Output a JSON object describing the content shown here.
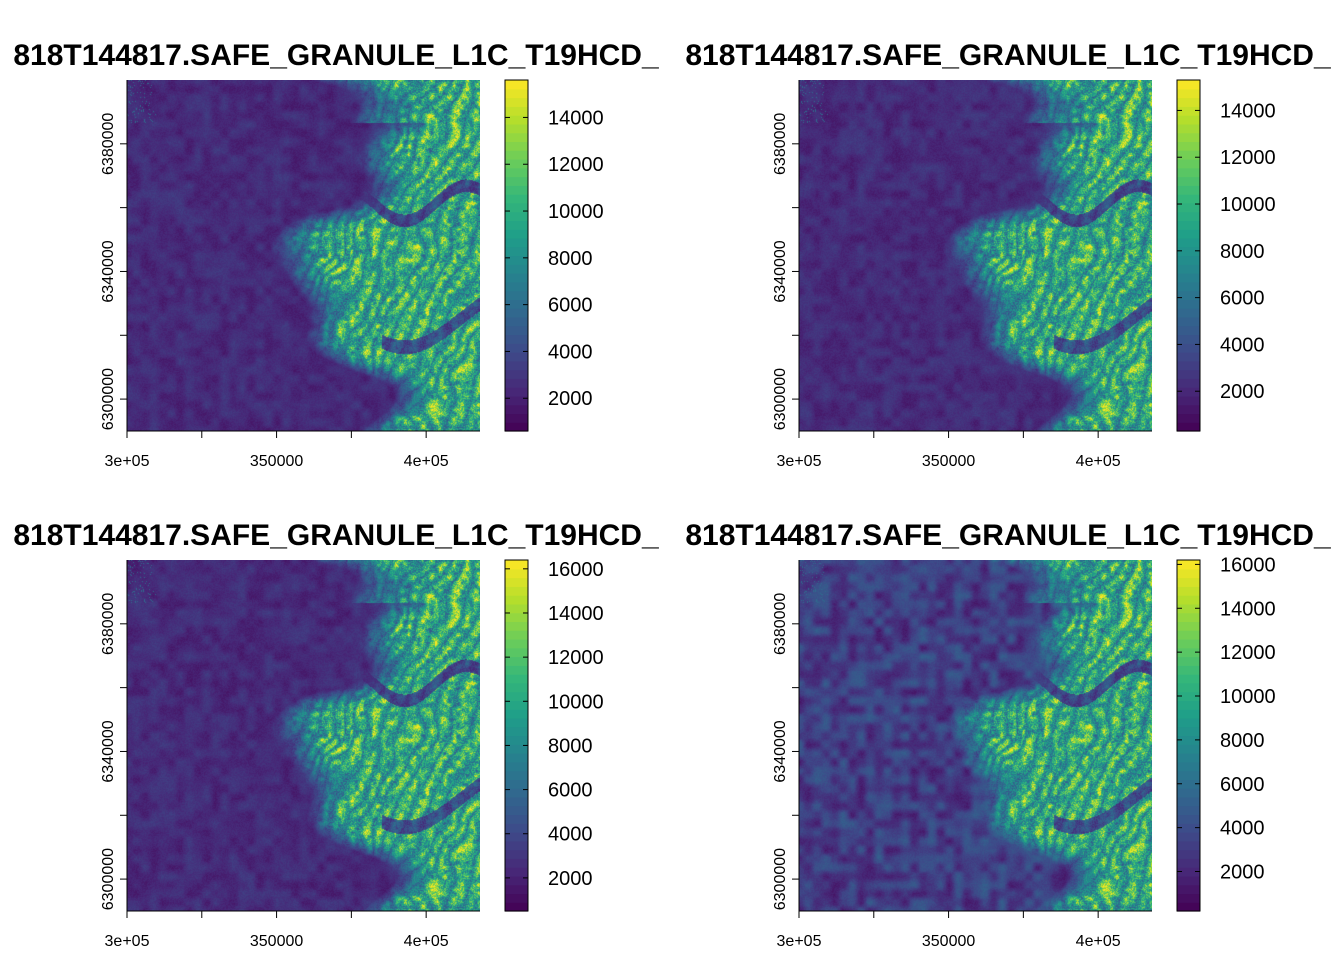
{
  "chart_data": [
    {
      "type": "heatmap",
      "title": "818T144817.SAFE_GRANULE_L1C_T19HCD_",
      "x_ticks": [
        {
          "value": 300000,
          "label": "3e+05"
        },
        {
          "value": 350000,
          "label": "350000"
        },
        {
          "value": 400000,
          "label": "4e+05"
        }
      ],
      "y_ticks": [
        {
          "value": 6300000,
          "label": "6300000"
        },
        {
          "value": 6340000,
          "label": "6340000"
        },
        {
          "value": 6380000,
          "label": "6380000"
        }
      ],
      "colorbar": {
        "min": 600,
        "max": 15600,
        "ticks": [
          2000,
          4000,
          6000,
          8000,
          10000,
          12000,
          14000
        ]
      },
      "texture": 0.1
    },
    {
      "type": "heatmap",
      "title": "818T144817.SAFE_GRANULE_L1C_T19HCD_",
      "x_ticks": [
        {
          "value": 300000,
          "label": "3e+05"
        },
        {
          "value": 350000,
          "label": "350000"
        },
        {
          "value": 400000,
          "label": "4e+05"
        }
      ],
      "y_ticks": [
        {
          "value": 6300000,
          "label": "6300000"
        },
        {
          "value": 6340000,
          "label": "6340000"
        },
        {
          "value": 6380000,
          "label": "6380000"
        }
      ],
      "colorbar": {
        "min": 300,
        "max": 15300,
        "ticks": [
          2000,
          4000,
          6000,
          8000,
          10000,
          12000,
          14000
        ]
      },
      "texture": 0.1
    },
    {
      "type": "heatmap",
      "title": "818T144817.SAFE_GRANULE_L1C_T19HCD_",
      "x_ticks": [
        {
          "value": 300000,
          "label": "3e+05"
        },
        {
          "value": 350000,
          "label": "350000"
        },
        {
          "value": 400000,
          "label": "4e+05"
        }
      ],
      "y_ticks": [
        {
          "value": 6300000,
          "label": "6300000"
        },
        {
          "value": 6340000,
          "label": "6340000"
        },
        {
          "value": 6380000,
          "label": "6380000"
        }
      ],
      "colorbar": {
        "min": 500,
        "max": 16400,
        "ticks": [
          2000,
          4000,
          6000,
          8000,
          10000,
          12000,
          14000,
          16000
        ]
      },
      "texture": 0.1
    },
    {
      "type": "heatmap",
      "title": "818T144817.SAFE_GRANULE_L1C_T19HCD_",
      "x_ticks": [
        {
          "value": 300000,
          "label": "3e+05"
        },
        {
          "value": 350000,
          "label": "350000"
        },
        {
          "value": 400000,
          "label": "4e+05"
        }
      ],
      "y_ticks": [
        {
          "value": 6300000,
          "label": "6300000"
        },
        {
          "value": 6340000,
          "label": "6340000"
        },
        {
          "value": 6380000,
          "label": "6380000"
        }
      ],
      "colorbar": {
        "min": 200,
        "max": 16200,
        "ticks": [
          2000,
          4000,
          6000,
          8000,
          10000,
          12000,
          14000,
          16000
        ]
      },
      "texture": 0.22
    }
  ]
}
